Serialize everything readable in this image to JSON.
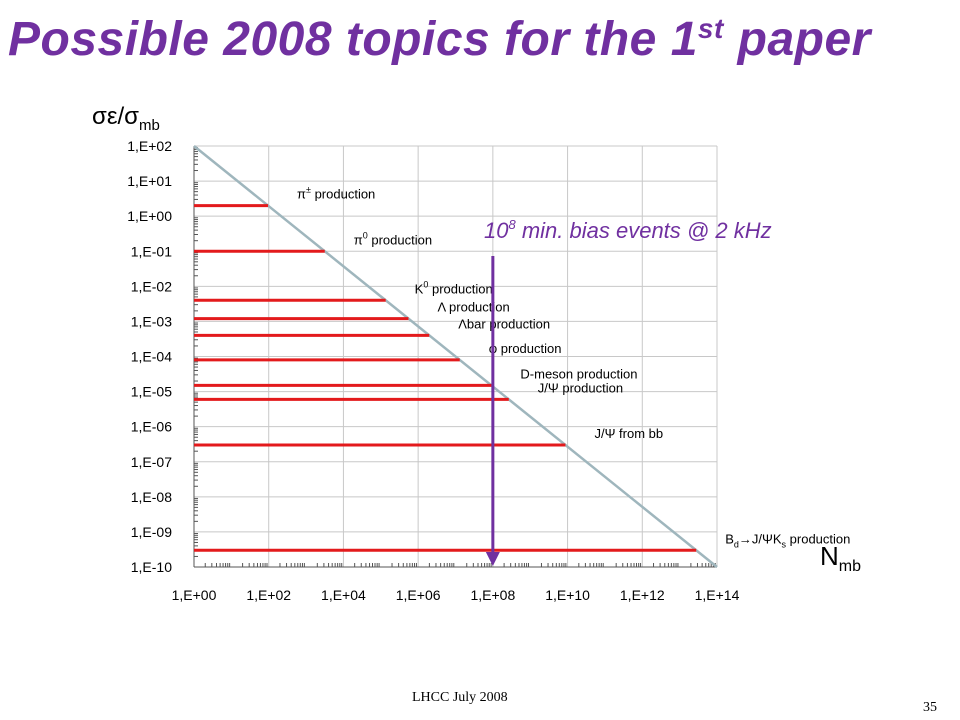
{
  "slide": {
    "title_main": "Possible 2008 topics for the 1",
    "title_sup": "st",
    "title_end": " paper",
    "footer": "LHCC July 2008",
    "page_number": "35"
  },
  "colors": {
    "title": "#7030a0",
    "marker": "#e31a1c",
    "diagonal": "#9fb6bd",
    "arrow": "#7030a0",
    "grid": "#c8c8c8"
  },
  "chart_data": {
    "type": "bar",
    "orientation": "horizontal",
    "x_scale": "log",
    "y_scale": "log",
    "ylabel": "σε/σ",
    "ylabel_sub": "mb",
    "xlabel": "N",
    "xlabel_sub": "mb",
    "xlim": [
      1,
      100000000000000.0
    ],
    "ylim": [
      1e-10,
      100
    ],
    "x_ticks": [
      "1,E+00",
      "1,E+02",
      "1,E+04",
      "1,E+06",
      "1,E+08",
      "1,E+10",
      "1,E+12",
      "1,E+14"
    ],
    "y_ticks": [
      "1,E+02",
      "1,E+01",
      "1,E+00",
      "1,E-01",
      "1,E-02",
      "1,E-03",
      "1,E-04",
      "1,E-05",
      "1,E-06",
      "1,E-07",
      "1,E-08",
      "1,E-09",
      "1,E-10"
    ],
    "grid": true,
    "reference_line": {
      "from": [
        1,
        100
      ],
      "to": [
        100000000000000.0,
        1e-10
      ]
    },
    "bars": [
      {
        "label": "π",
        "label_sup": "±",
        "label_rest": " production",
        "y": 2.0
      },
      {
        "label": "π",
        "label_sup": "0",
        "label_rest": " production",
        "y": 0.1
      },
      {
        "label": "K",
        "label_sup": "0",
        "label_rest": " production",
        "y": 0.004
      },
      {
        "label": "Λ production",
        "y": 0.0012
      },
      {
        "label": "Λbar production",
        "y": 0.0004
      },
      {
        "label": "φ production",
        "y": 8e-05
      },
      {
        "label": "D-meson production",
        "y": 1.5e-05
      },
      {
        "label": "J/Ψ production",
        "y": 6e-06
      },
      {
        "label": "J/Ψ from bb",
        "y": 3e-07
      },
      {
        "label": "B",
        "label_sub": "d",
        "label_rest": "→J/ΨK",
        "label_sub2": "s",
        "label_rest2": " production",
        "y": 3e-10
      }
    ],
    "annotation": {
      "text": "10",
      "sup": "8",
      "rest": " min. bias events @ 2 kHz",
      "x": 100000000.0
    }
  }
}
